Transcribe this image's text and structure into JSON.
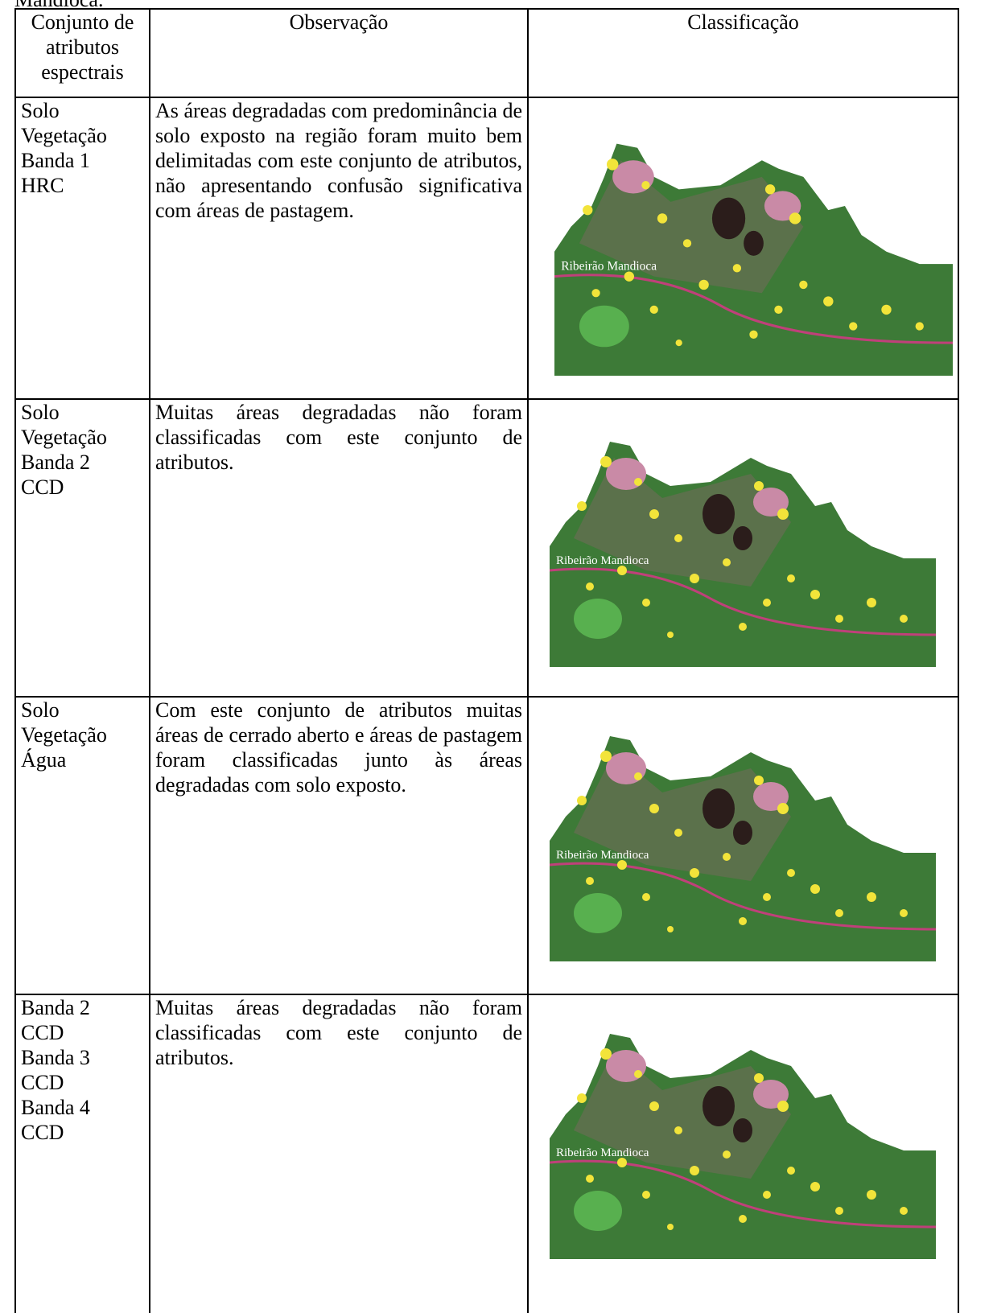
{
  "caption_tail": "Mandioca.",
  "table": {
    "headers": [
      "Conjunto de atributos espectrais",
      "Observação",
      "Classificação"
    ],
    "rows": [
      {
        "attributes": "Solo\nVegetação\nBanda 1\nHRC",
        "observation": "As áreas degradadas com predominância de solo exposto na região foram muito bem delimitadas com este conjunto de atributos, não apresentando confusão significativa com áreas de pastagem.",
        "map_label": "Ribeirão Mandioca"
      },
      {
        "attributes": "Solo\nVegetação\nBanda 2\nCCD",
        "observation": "Muitas áreas degradadas não foram classificadas com este conjunto de atributos.",
        "map_label": "Ribeirão Mandioca"
      },
      {
        "attributes": "Solo\nVegetação\nÁgua",
        "observation": "Com este conjunto de atributos muitas áreas de cerrado aberto e áreas de pastagem foram classificadas junto às áreas degradadas com solo exposto.",
        "map_label": "Ribeirão Mandioca"
      },
      {
        "attributes": "Banda 2\nCCD\nBanda 3\nCCD\nBanda 4\nCCD",
        "observation": "Muitas áreas degradadas não foram classificadas com este conjunto de atributos.",
        "map_label": "Ribeirão Mandioca"
      }
    ]
  }
}
